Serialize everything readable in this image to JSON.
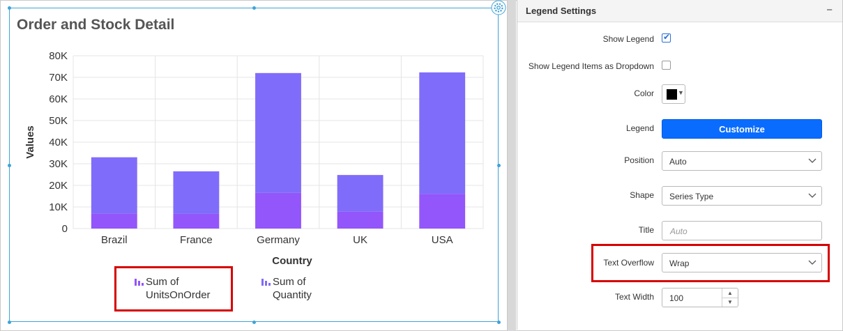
{
  "widget": {
    "title": "Order and Stock Detail"
  },
  "chart_data": {
    "type": "bar",
    "stacked": true,
    "categories": [
      "Brazil",
      "France",
      "Germany",
      "UK",
      "USA"
    ],
    "series": [
      {
        "name": "Sum of UnitsOnOrder",
        "values": [
          7000,
          6800,
          16500,
          7800,
          16000
        ],
        "color": "#9356fa"
      },
      {
        "name": "Sum of Quantity",
        "values": [
          26000,
          19700,
          55500,
          17000,
          56300
        ],
        "color": "#806cfa"
      }
    ],
    "xlabel": "Country",
    "ylabel": "Values",
    "ylim": [
      0,
      80000
    ],
    "yticks": [
      "0",
      "10K",
      "20K",
      "30K",
      "40K",
      "50K",
      "60K",
      "70K",
      "80K"
    ],
    "grid": true,
    "legend": {
      "position": "bottom",
      "items": [
        {
          "line1": "Sum of",
          "line2": "UnitsOnOrder"
        },
        {
          "line1": "Sum of",
          "line2": "Quantity"
        }
      ]
    }
  },
  "panel": {
    "title": "Legend Settings",
    "collapse_icon": "−",
    "rows": {
      "show_legend": {
        "label": "Show Legend",
        "checked": true
      },
      "dropdown_items": {
        "label": "Show Legend Items as Dropdown",
        "checked": false
      },
      "color": {
        "label": "Color",
        "value": "#000000"
      },
      "legend": {
        "label": "Legend",
        "button": "Customize"
      },
      "position": {
        "label": "Position",
        "value": "Auto"
      },
      "shape": {
        "label": "Shape",
        "value": "Series Type"
      },
      "title": {
        "label": "Title",
        "placeholder": "Auto"
      },
      "text_overflow": {
        "label": "Text Overflow",
        "value": "Wrap"
      },
      "text_width": {
        "label": "Text Width",
        "value": "100"
      }
    }
  }
}
